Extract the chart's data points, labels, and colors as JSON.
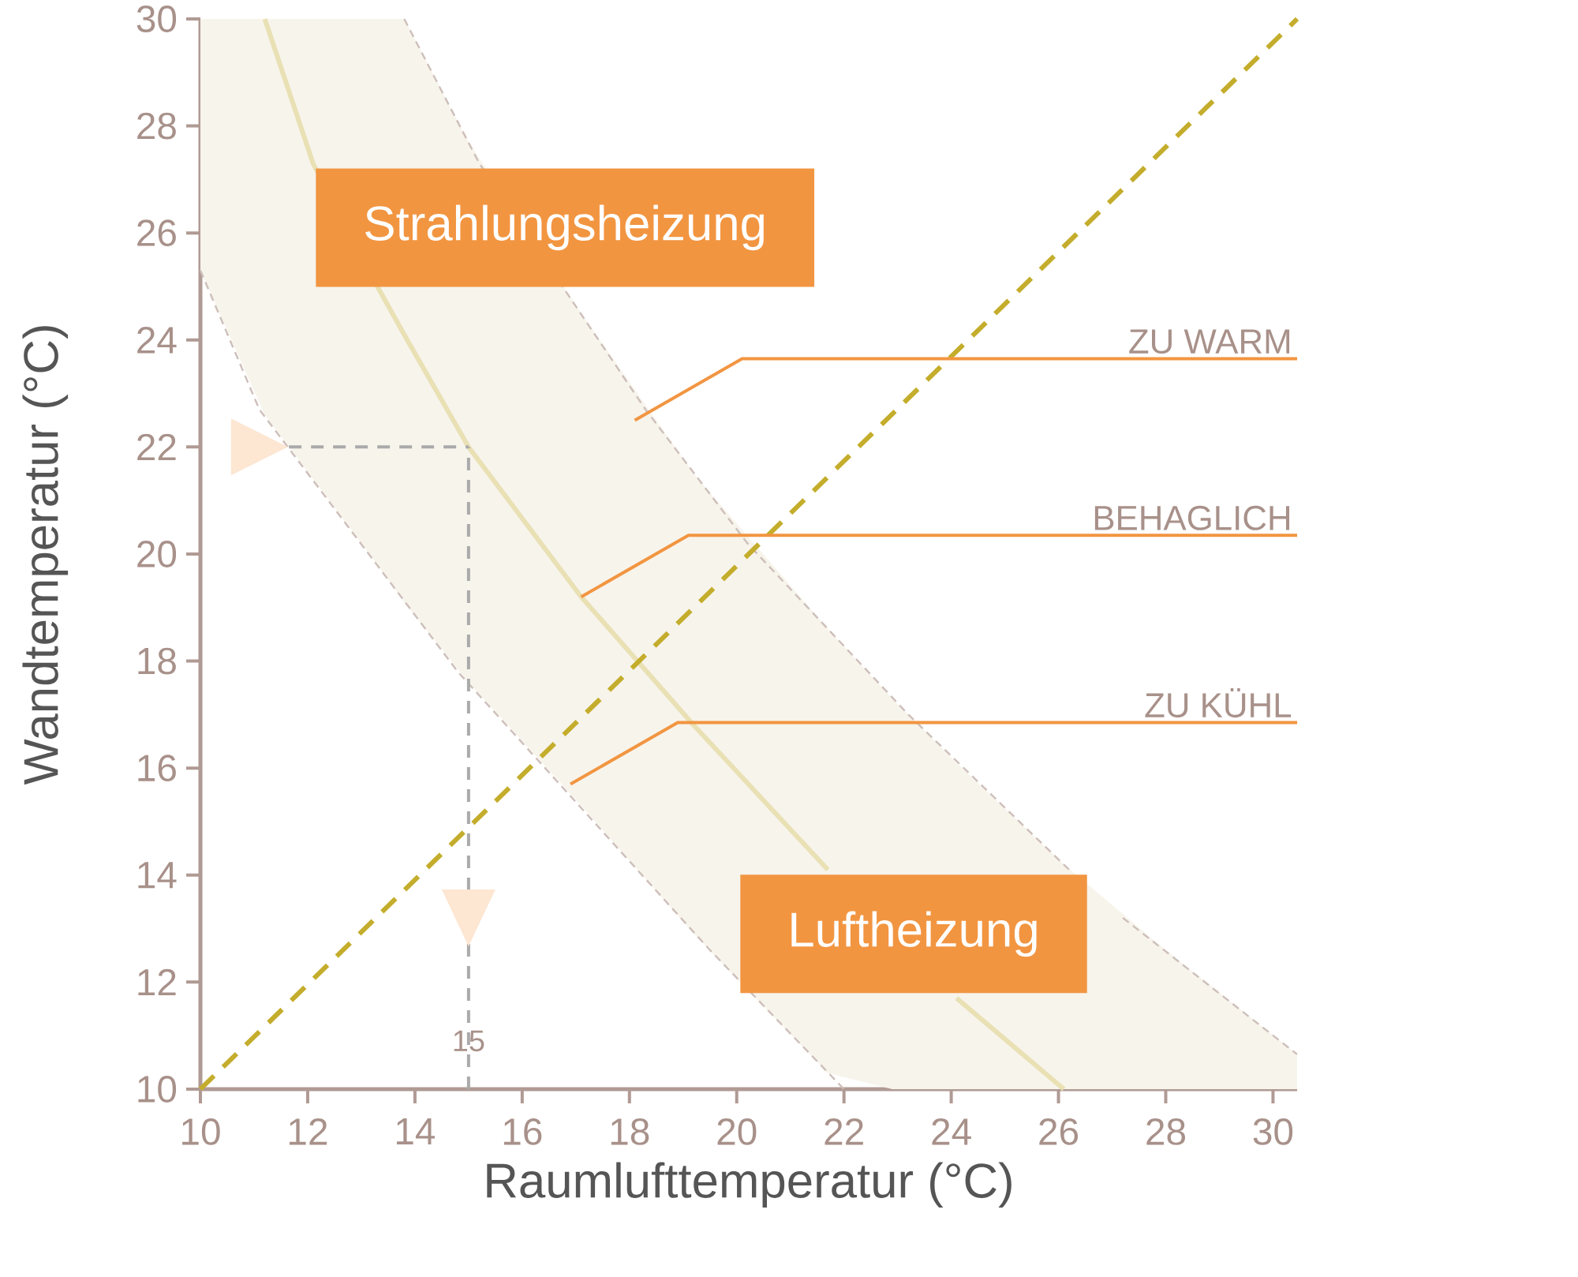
{
  "chart_data": {
    "type": "line",
    "xlabel": "Raumlufttemperatur (°C)",
    "ylabel": "Wandtemperatur (°C)",
    "xlim": [
      10,
      30.45
    ],
    "ylim": [
      10,
      30
    ],
    "xticks": [
      10,
      12,
      14,
      16,
      18,
      20,
      22,
      24,
      26,
      28,
      30
    ],
    "yticks": [
      10,
      12,
      14,
      16,
      18,
      20,
      22,
      24,
      26,
      28,
      30
    ],
    "series": [
      {
        "color": "#cdbfba",
        "line_style": "dashed",
        "x": [
          10,
          11.1,
          14.8,
          19.5,
          22
        ],
        "values": [
          25.3,
          22.7,
          17.8,
          12.6,
          10
        ]
      },
      {
        "color": "#cdbfba",
        "line_style": "dashed",
        "x": [
          13.8,
          15.2,
          18.3,
          20.2,
          23.2,
          26.2,
          26.6,
          27.2,
          30.45
        ],
        "values": [
          30,
          27.3,
          22.7,
          20.2,
          17,
          14.1,
          null,
          13.2,
          10.65
        ]
      },
      {
        "color": "#e9e0b4",
        "line_style": "solid",
        "x": [
          10,
          11.2,
          12.1,
          13.3,
          13.8,
          15,
          17.1,
          19.2,
          21.7,
          22.9,
          24.1,
          26.1,
          28,
          30.45
        ],
        "values": [
          null,
          30,
          27.3,
          25,
          24.1,
          22,
          19.2,
          16.8,
          14.1,
          null,
          11.7,
          10,
          null,
          null
        ],
        "lower": [
          25.3,
          22.6,
          21.4,
          19.8,
          19.1,
          17.6,
          15.3,
          12.9,
          10.3,
          10,
          10,
          10,
          10,
          10
        ],
        "upper": [
          30,
          30,
          30,
          30,
          30,
          27.7,
          24.5,
          21.5,
          18.6,
          17.3,
          16.1,
          14.2,
          12.6,
          10.65
        ]
      },
      {
        "color": "#c4ad2c",
        "line_style": "dashed",
        "x": [
          10,
          30.45
        ],
        "values": [
          10,
          30
        ]
      }
    ],
    "ref_lines": [
      {
        "axis": "x",
        "value": 15,
        "label": "15",
        "color": "#aaaaaa",
        "line_style": "dashed"
      },
      {
        "axis": "y",
        "value": 22,
        "color": "#aaaaaa",
        "line_style": "dashed"
      }
    ],
    "annotations": [
      "Strahlungsheizung",
      "Luftheizung",
      "ZU WARM",
      "BEHAGLICH",
      "ZU KÜHL"
    ]
  }
}
